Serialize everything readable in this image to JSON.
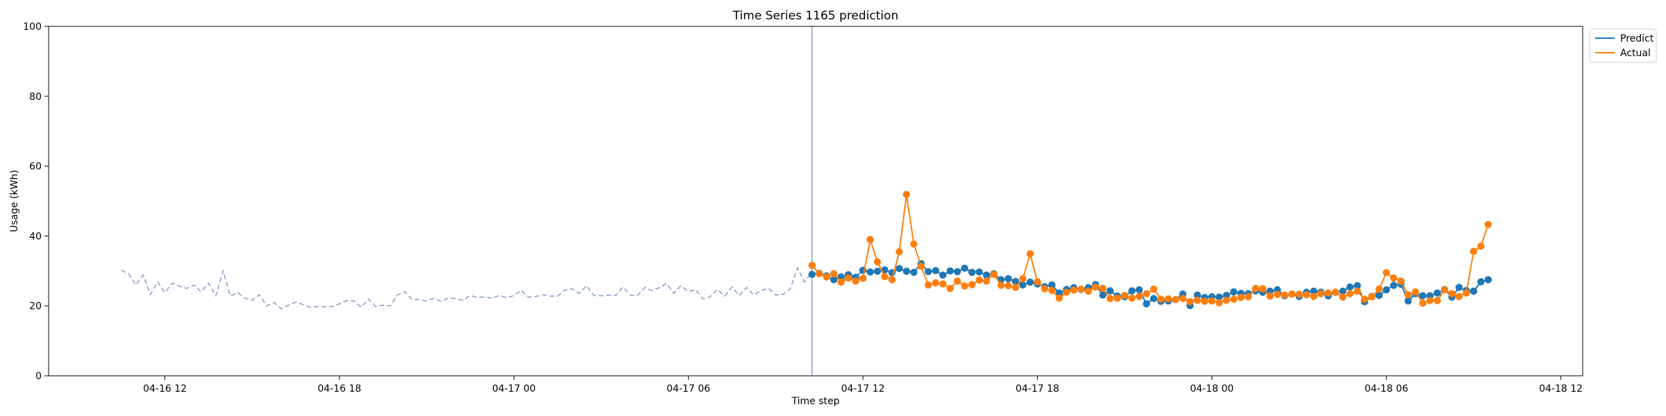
{
  "chart_data": {
    "type": "line",
    "title": "Time Series 1165 prediction",
    "xlabel": "Time step",
    "ylabel": "Usage (kWh)",
    "ylim": [
      0,
      100
    ],
    "yticks": [
      0,
      20,
      40,
      60,
      80,
      100
    ],
    "xlim": [
      "2025-04-16T08:00",
      "2025-04-18T12:45"
    ],
    "xticks": [
      {
        "t": "2025-04-16T12:00",
        "label": "04-16 12"
      },
      {
        "t": "2025-04-16T18:00",
        "label": "04-16 18"
      },
      {
        "t": "2025-04-17T00:00",
        "label": "04-17 00"
      },
      {
        "t": "2025-04-17T06:00",
        "label": "04-17 06"
      },
      {
        "t": "2025-04-17T12:00",
        "label": "04-17 12"
      },
      {
        "t": "2025-04-17T18:00",
        "label": "04-17 18"
      },
      {
        "t": "2025-04-18T00:00",
        "label": "04-18 00"
      },
      {
        "t": "2025-04-18T06:00",
        "label": "04-18 06"
      },
      {
        "t": "2025-04-18T12:00",
        "label": "04-18 12"
      }
    ],
    "grid": false,
    "legend": "outside-top-right",
    "forecast_start": "2025-04-17T10:15",
    "step_minutes": 15,
    "history": {
      "start": "2025-04-16T10:30",
      "color": "#8da0cb",
      "style": "dashed",
      "values": [
        30.2,
        29.2,
        26.0,
        28.8,
        23.3,
        26.9,
        23.8,
        26.5,
        25.6,
        25.0,
        26.0,
        24.0,
        26.5,
        22.9,
        30.0,
        22.8,
        23.8,
        22.2,
        21.6,
        23.2,
        20.0,
        21.0,
        19.2,
        20.2,
        21.1,
        20.4,
        19.6,
        19.8,
        19.7,
        19.8,
        20.6,
        21.5,
        21.4,
        19.6,
        22.0,
        19.8,
        20.2,
        20.0,
        23.2,
        24.1,
        21.8,
        21.8,
        21.4,
        22.2,
        21.3,
        22.3,
        22.1,
        21.6,
        23.0,
        22.4,
        22.6,
        22.2,
        23.0,
        22.3,
        23.0,
        24.5,
        22.5,
        22.7,
        23.2,
        22.8,
        22.8,
        24.5,
        24.9,
        23.6,
        25.8,
        23.0,
        22.9,
        23.1,
        23.0,
        25.4,
        23.1,
        23.0,
        25.3,
        24.4,
        25.2,
        26.4,
        23.6,
        25.8,
        24.1,
        24.6,
        22.0,
        22.6,
        24.7,
        22.8,
        25.4,
        23.0,
        25.3,
        23.1,
        24.4,
        25.1,
        23.1,
        23.3,
        24.8,
        30.9,
        26.8,
        29.8
      ]
    },
    "series": [
      {
        "name": "Predict",
        "color": "#1f77b4",
        "start": "2025-04-17T10:15",
        "values": [
          29.0,
          29.3,
          28.6,
          27.5,
          28.3,
          28.9,
          28.2,
          30.2,
          29.7,
          29.9,
          30.3,
          29.5,
          30.7,
          29.9,
          29.6,
          32.1,
          29.8,
          30.1,
          28.8,
          30.0,
          29.8,
          30.8,
          29.6,
          29.7,
          28.8,
          29.2,
          27.5,
          27.8,
          27.0,
          26.0,
          26.8,
          26.3,
          25.5,
          26.0,
          23.7,
          24.7,
          25.2,
          24.7,
          25.2,
          26.1,
          23.1,
          24.3,
          22.8,
          22.6,
          24.3,
          24.6,
          20.6,
          22.1,
          21.3,
          21.4,
          21.8,
          23.4,
          20.1,
          23.1,
          22.4,
          22.6,
          22.5,
          23.0,
          24.0,
          23.6,
          23.5,
          24.3,
          23.9,
          24.2,
          24.6,
          22.9,
          23.4,
          22.7,
          23.9,
          24.2,
          23.9,
          22.9,
          23.9,
          24.2,
          25.4,
          25.8,
          21.2,
          22.7,
          23.0,
          24.6,
          25.9,
          26.2,
          21.4,
          23.5,
          22.9,
          22.9,
          23.7,
          24.7,
          22.5,
          25.3,
          24.4,
          24.2,
          26.9,
          27.5
        ]
      },
      {
        "name": "Actual",
        "color": "#ff7f0e",
        "start": "2025-04-17T10:15",
        "values": [
          31.6,
          29.2,
          28.3,
          29.2,
          26.8,
          28.0,
          27.1,
          27.9,
          39.0,
          32.6,
          28.4,
          27.5,
          35.5,
          51.9,
          37.7,
          31.3,
          26.0,
          26.6,
          26.3,
          25.0,
          27.1,
          25.7,
          26.1,
          27.4,
          27.1,
          29.0,
          25.9,
          25.8,
          25.3,
          27.8,
          34.9,
          26.9,
          24.9,
          24.4,
          22.2,
          23.9,
          24.5,
          24.8,
          24.2,
          25.4,
          25.0,
          22.1,
          22.2,
          23.0,
          22.2,
          22.7,
          23.5,
          24.8,
          21.9,
          22.0,
          21.8,
          22.1,
          21.2,
          21.6,
          21.3,
          21.4,
          20.9,
          21.6,
          21.9,
          22.4,
          22.6,
          25.0,
          24.9,
          22.8,
          23.3,
          23.1,
          23.4,
          23.3,
          23.2,
          22.7,
          23.5,
          23.7,
          23.9,
          22.5,
          23.5,
          24.2,
          21.9,
          22.6,
          24.8,
          29.5,
          28.0,
          27.1,
          23.2,
          24.0,
          20.8,
          21.5,
          21.5,
          24.6,
          23.5,
          22.7,
          23.7,
          35.6,
          37.1,
          43.3
        ]
      }
    ]
  }
}
